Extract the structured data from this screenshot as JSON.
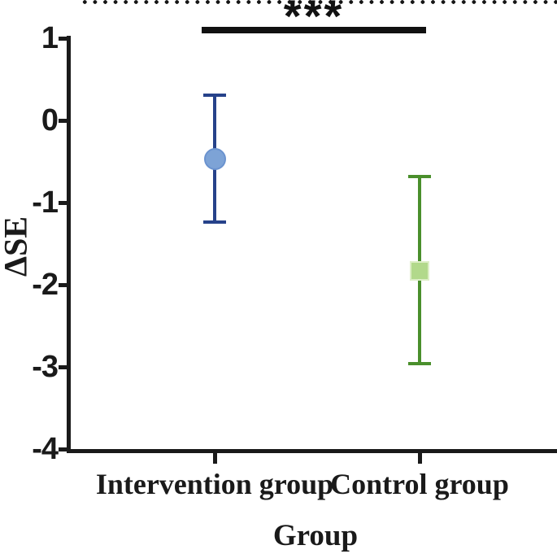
{
  "figure": {
    "background": "#ffffff",
    "axis_color": "#1a1a1a",
    "annotation_color": "#111111"
  },
  "chart_data": {
    "type": "scatter",
    "subtype": "mean-with-error-bars",
    "title": "",
    "xlabel": "Group",
    "ylabel": "ΔSE",
    "categories": [
      "Intervention group",
      "Control group"
    ],
    "ylim": [
      -4,
      1
    ],
    "yticks": [
      1,
      0,
      -1,
      -2,
      -3,
      -4
    ],
    "baseline": {
      "value": 0,
      "style": "dotted"
    },
    "grid": false,
    "legend": false,
    "series": [
      {
        "name": "Intervention group",
        "marker": "circle",
        "mean": -0.47,
        "ci_upper": 0.31,
        "ci_lower": -1.24,
        "line_color": "#26428a",
        "fill_color": "#7da3d6",
        "edge_color": "#6b93cf"
      },
      {
        "name": "Control group",
        "marker": "square",
        "mean": -1.83,
        "ci_upper": -0.68,
        "ci_lower": -2.96,
        "line_color": "#4a8f2c",
        "fill_color": "#b2d98b",
        "edge_color": "#ddeec6"
      }
    ],
    "annotations": [
      {
        "text": "***",
        "from": "Intervention group",
        "to": "Control group"
      }
    ]
  }
}
